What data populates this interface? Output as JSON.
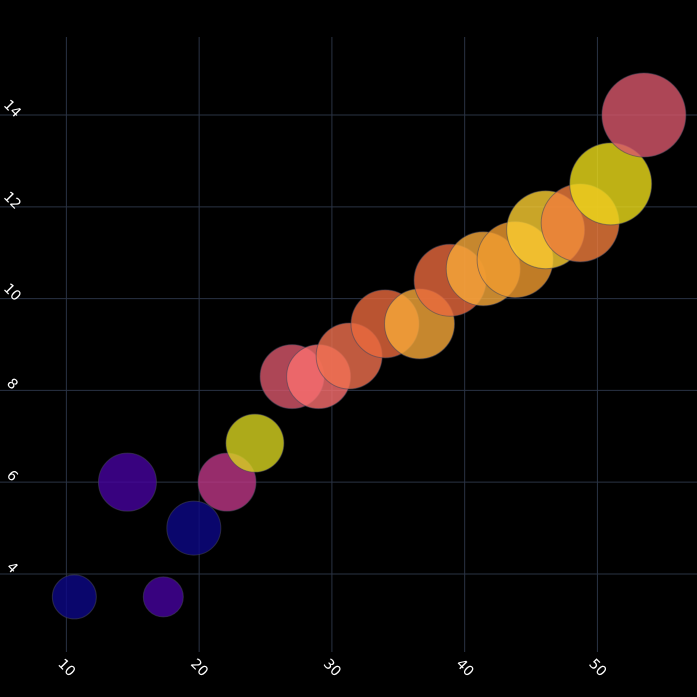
{
  "chart_data": {
    "type": "scatter",
    "title": "",
    "xlabel": "",
    "ylabel": "",
    "xlim": [
      5,
      57.5
    ],
    "ylim": [
      2.3,
      15.7
    ],
    "x_ticks": [
      10,
      20,
      30,
      40,
      50
    ],
    "y_ticks": [
      4,
      6,
      8,
      10,
      12,
      14
    ],
    "x_tick_labels": [
      "10",
      "20",
      "30",
      "40",
      "50"
    ],
    "y_tick_labels": [
      "4",
      "6",
      "8",
      "10",
      "12",
      "14"
    ],
    "grid": true,
    "background": "#000000",
    "grid_color": "#2a3344",
    "points": [
      {
        "x": 10.6,
        "y": 3.5,
        "size": 22,
        "color": "#0d0887"
      },
      {
        "x": 17.3,
        "y": 3.5,
        "size": 20,
        "color": "#46039f"
      },
      {
        "x": 14.6,
        "y": 6.0,
        "size": 29,
        "color": "#46039f"
      },
      {
        "x": 19.6,
        "y": 5.0,
        "size": 27,
        "color": "#0d0887"
      },
      {
        "x": 22.1,
        "y": 6.0,
        "size": 29,
        "color": "#bd3786"
      },
      {
        "x": 24.2,
        "y": 6.85,
        "size": 29,
        "color": "#d8d521"
      },
      {
        "x": 27.0,
        "y": 8.3,
        "size": 32,
        "color": "#d8576b"
      },
      {
        "x": 29.0,
        "y": 8.3,
        "size": 32,
        "color": "#fa6f6f"
      },
      {
        "x": 31.3,
        "y": 8.75,
        "size": 33,
        "color": "#f0704f"
      },
      {
        "x": 34.0,
        "y": 9.45,
        "size": 34,
        "color": "#e8693d"
      },
      {
        "x": 36.6,
        "y": 9.45,
        "size": 35,
        "color": "#f8a93a"
      },
      {
        "x": 38.9,
        "y": 10.4,
        "size": 36,
        "color": "#e8693d"
      },
      {
        "x": 41.4,
        "y": 10.65,
        "size": 37,
        "color": "#f8a93a"
      },
      {
        "x": 43.8,
        "y": 10.85,
        "size": 38,
        "color": "#f09b30"
      },
      {
        "x": 46.1,
        "y": 11.5,
        "size": 39,
        "color": "#fbce32"
      },
      {
        "x": 48.7,
        "y": 11.65,
        "size": 39,
        "color": "#f07d3c"
      },
      {
        "x": 51.0,
        "y": 12.5,
        "size": 41,
        "color": "#eedd1a"
      },
      {
        "x": 53.5,
        "y": 14.0,
        "size": 42,
        "color": "#d8576b"
      }
    ]
  }
}
